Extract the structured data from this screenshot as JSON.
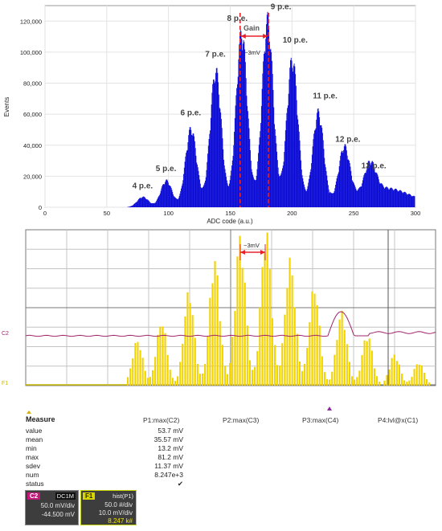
{
  "histogram": {
    "ylabel": "Events",
    "xlabel": "ADC code (a.u.)",
    "y_ticks": [
      "0",
      "20,000",
      "40,000",
      "60,000",
      "80,000",
      "100,000",
      "120,000"
    ],
    "x_ticks": [
      "0",
      "50",
      "100",
      "150",
      "200",
      "250",
      "300"
    ],
    "gain_label": "Gain",
    "mv_label": "~3mV",
    "peak_labels": [
      "4 p.e.",
      "5 p.e.",
      "6 p.e.",
      "7 p.e.",
      "8 p.e.",
      "9 p.e.",
      "10 p.e.",
      "11 p.e.",
      "12 p.e.",
      "13 p.e."
    ],
    "bar_color": "#0b0bd6",
    "marker_color": "#e8202a"
  },
  "scope": {
    "mv_label": "~3mV",
    "ch2_label": "C2",
    "f1_label": "F1",
    "bar_color": "#f2d200",
    "trace_color": "#a0246c"
  },
  "measure": {
    "title": "Measure",
    "columns": [
      "P1:max(C2)",
      "P2:max(C3)",
      "P3:max(C4)",
      "P4:lvl@x(C1)"
    ],
    "rows": [
      {
        "label": "value",
        "value": "53.7 mV"
      },
      {
        "label": "mean",
        "value": "35.57 mV"
      },
      {
        "label": "min",
        "value": "13.2 mV"
      },
      {
        "label": "max",
        "value": "81.2 mV"
      },
      {
        "label": "sdev",
        "value": "11.37 mV"
      },
      {
        "label": "num",
        "value": "8.247e+3"
      },
      {
        "label": "status",
        "value": "✔"
      }
    ]
  },
  "legend": {
    "c2": {
      "badge": "C2",
      "tag": "DC1M",
      "line1": "50.0 mV/div",
      "line2": "-44.500 mV",
      "color": "#c2187a"
    },
    "f1": {
      "badge": "F1",
      "tag": "hist(P1)",
      "line1": "50.0 #/div",
      "line2": "10.0 mV/div",
      "line3": "8.247 k#",
      "color": "#d8d400"
    }
  },
  "chart_data": [
    {
      "type": "bar",
      "title": "",
      "xlabel": "ADC code (a.u.)",
      "ylabel": "Events",
      "xlim": [
        0,
        300
      ],
      "ylim": [
        0,
        130000
      ],
      "grid": true,
      "peaks": [
        {
          "label": "4 p.e.",
          "x": 79,
          "y": 7000
        },
        {
          "label": "5 p.e.",
          "x": 98,
          "y": 18000
        },
        {
          "label": "6 p.e.",
          "x": 118,
          "y": 53000
        },
        {
          "label": "7 p.e.",
          "x": 138,
          "y": 92000
        },
        {
          "label": "8 p.e.",
          "x": 159,
          "y": 118000
        },
        {
          "label": "9 p.e.",
          "x": 180,
          "y": 126000
        },
        {
          "label": "10 p.e.",
          "x": 200,
          "y": 100000
        },
        {
          "label": "11 p.e.",
          "x": 221,
          "y": 64000
        },
        {
          "label": "12 p.e.",
          "x": 242,
          "y": 37000
        },
        {
          "label": "13 p.e.",
          "x": 263,
          "y": 20000
        }
      ],
      "markers_x": [
        158,
        181
      ]
    },
    {
      "type": "bar",
      "title": "",
      "series": [
        {
          "values": [
            0.2,
            0.4,
            0.7,
            1.3,
            0.9,
            1.4,
            2.0,
            2.9,
            3.6,
            4.1,
            3.2,
            2.7,
            1.8,
            1.2,
            0.7,
            0.4
          ]
        }
      ]
    }
  ]
}
